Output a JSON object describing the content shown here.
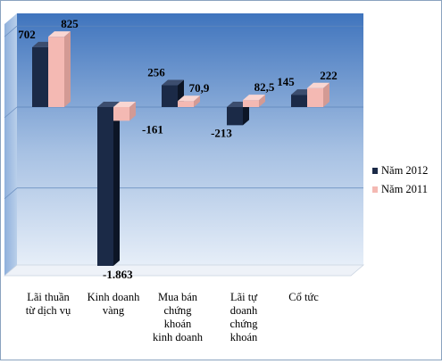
{
  "chart_data": {
    "type": "bar",
    "title": "",
    "xlabel": "",
    "ylabel": "",
    "ylim": [
      -1950,
      950
    ],
    "grid": true,
    "legend_position": "right",
    "categories": [
      [
        "Lãi thuần",
        "từ dịch vụ"
      ],
      [
        "Kinh doanh",
        "vàng"
      ],
      [
        "Mua bán",
        "chứng",
        "khoán",
        "kinh doanh"
      ],
      [
        "Lãi tự",
        "doanh",
        "chứng",
        "khoán"
      ],
      [
        "Cổ tức"
      ]
    ],
    "series": [
      {
        "name": "Năm 2012",
        "color": "#1b2a47",
        "top_color": "#3c4d6e",
        "side_color": "#0c1526",
        "values": [
          702,
          -1863,
          256,
          -213,
          145
        ],
        "labels": [
          "702",
          "-1.863",
          "256",
          "-213",
          "145"
        ]
      },
      {
        "name": "Năm 2011",
        "color": "#f4b9b3",
        "top_color": "#f9d6d2",
        "side_color": "#d39a94",
        "values": [
          825,
          -161,
          70.9,
          82.5,
          222
        ],
        "labels": [
          "825",
          "-161",
          "70,9",
          "82,5",
          "222"
        ]
      }
    ]
  }
}
